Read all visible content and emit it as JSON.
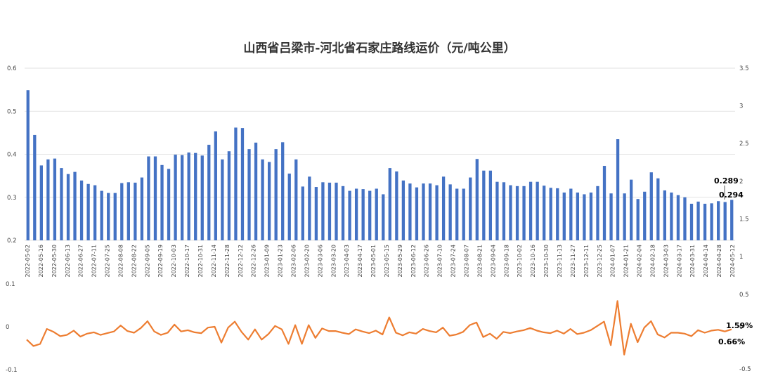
{
  "chart_data": {
    "title": "山西省吕梁市-河北省石家庄路线运价（元/吨公里）",
    "type": "bar+line",
    "x_labels": [
      "2022-05-02",
      "2022-05-16",
      "2022-05-30",
      "2022-06-13",
      "2022-06-27",
      "2022-07-11",
      "2022-07-25",
      "2022-08-08",
      "2022-08-22",
      "2022-09-05",
      "2022-09-19",
      "2022-10-03",
      "2022-10-17",
      "2022-10-31",
      "2022-11-14",
      "2022-11-28",
      "2022-12-12",
      "2022-12-26",
      "2023-01-09",
      "2023-01-23",
      "2023-02-06",
      "2023-02-20",
      "2023-03-06",
      "2023-03-20",
      "2023-04-03",
      "2023-04-17",
      "2023-05-01",
      "2023-05-15",
      "2023-05-29",
      "2023-06-12",
      "2023-06-26",
      "2023-07-10",
      "2023-07-24",
      "2023-08-07",
      "2023-08-21",
      "2023-09-04",
      "2023-09-18",
      "2023-10-02",
      "2023-10-16",
      "2023-10-30",
      "2023-11-13",
      "2023-11-27",
      "2023-12-11",
      "2023-12-25",
      "2024-01-07",
      "2024-01-21",
      "2024-02-04",
      "2024-02-18",
      "2024-03-03",
      "2024-03-17",
      "2024-03-31",
      "2024-04-14",
      "2024-04-28",
      "2024-05-12"
    ],
    "bar_series": {
      "values": [
        0.549,
        0.445,
        0.374,
        0.388,
        0.39,
        0.368,
        0.354,
        0.359,
        0.339,
        0.331,
        0.328,
        0.315,
        0.31,
        0.31,
        0.333,
        0.335,
        0.334,
        0.346,
        0.395,
        0.395,
        0.375,
        0.366,
        0.399,
        0.398,
        0.404,
        0.403,
        0.397,
        0.422,
        0.453,
        0.388,
        0.407,
        0.462,
        0.461,
        0.412,
        0.427,
        0.388,
        0.382,
        0.412,
        0.428,
        0.355,
        0.388,
        0.325,
        0.348,
        0.324,
        0.335,
        0.334,
        0.334,
        0.326,
        0.315,
        0.32,
        0.319,
        0.315,
        0.32,
        0.307,
        0.368,
        0.36,
        0.339,
        0.332,
        0.323,
        0.332,
        0.332,
        0.328,
        0.348,
        0.33,
        0.32,
        0.32,
        0.346,
        0.389,
        0.362,
        0.362,
        0.336,
        0.335,
        0.328,
        0.326,
        0.326,
        0.336,
        0.336,
        0.327,
        0.322,
        0.321,
        0.311,
        0.32,
        0.311,
        0.307,
        0.311,
        0.326,
        0.373,
        0.309,
        0.435,
        0.309,
        0.341,
        0.296,
        0.313,
        0.358,
        0.344,
        0.316,
        0.311,
        0.305,
        0.3,
        0.285,
        0.29,
        0.285,
        0.286,
        0.291,
        0.289,
        0.294
      ],
      "ylim": [
        0.2,
        0.6
      ],
      "yticks": [
        "0.2",
        "0.3",
        "0.4",
        "0.5",
        "0.6"
      ],
      "right_yticks": [
        "1",
        "1.5",
        "2",
        "2.5",
        "3",
        "3.5"
      ],
      "color": "#4472C4"
    },
    "line_series": {
      "values": [
        -0.03,
        -0.045,
        -0.04,
        -0.005,
        -0.012,
        -0.022,
        -0.019,
        -0.009,
        -0.023,
        -0.016,
        -0.013,
        -0.019,
        -0.015,
        -0.011,
        0.003,
        -0.01,
        -0.014,
        -0.003,
        0.013,
        -0.011,
        -0.019,
        -0.014,
        0.005,
        -0.011,
        -0.008,
        -0.013,
        -0.015,
        -0.002,
        0.0,
        -0.037,
        -0.002,
        0.012,
        -0.012,
        -0.03,
        -0.006,
        -0.03,
        -0.017,
        0.002,
        -0.006,
        -0.04,
        0.004,
        -0.04,
        0.004,
        -0.026,
        -0.004,
        -0.01,
        -0.01,
        -0.014,
        -0.017,
        -0.006,
        -0.011,
        -0.015,
        -0.009,
        -0.018,
        0.022,
        -0.014,
        -0.02,
        -0.013,
        -0.016,
        -0.005,
        -0.01,
        -0.013,
        -0.002,
        -0.021,
        -0.018,
        -0.012,
        0.004,
        0.01,
        -0.024,
        -0.016,
        -0.028,
        -0.012,
        -0.015,
        -0.011,
        -0.008,
        -0.003,
        -0.009,
        -0.013,
        -0.015,
        -0.009,
        -0.016,
        -0.005,
        -0.017,
        -0.014,
        -0.008,
        0.002,
        0.012,
        -0.043,
        0.06,
        -0.065,
        0.007,
        -0.036,
        -0.002,
        0.013,
        -0.018,
        -0.025,
        -0.014,
        -0.014,
        -0.016,
        -0.022,
        -0.008,
        -0.014,
        -0.009,
        -0.007,
        -0.011,
        -0.006
      ],
      "ylim": [
        -0.1,
        0.1
      ],
      "yticks": [
        "-0.1",
        "0",
        "0.1"
      ],
      "right_yticks": [
        "-0.5",
        "0",
        "0.5"
      ],
      "color": "#ED7D31"
    },
    "annotations": {
      "bar_last": "0.289",
      "bar_last2": "0.294",
      "line_last": "1.59%",
      "line_last2": "0.66%"
    }
  }
}
